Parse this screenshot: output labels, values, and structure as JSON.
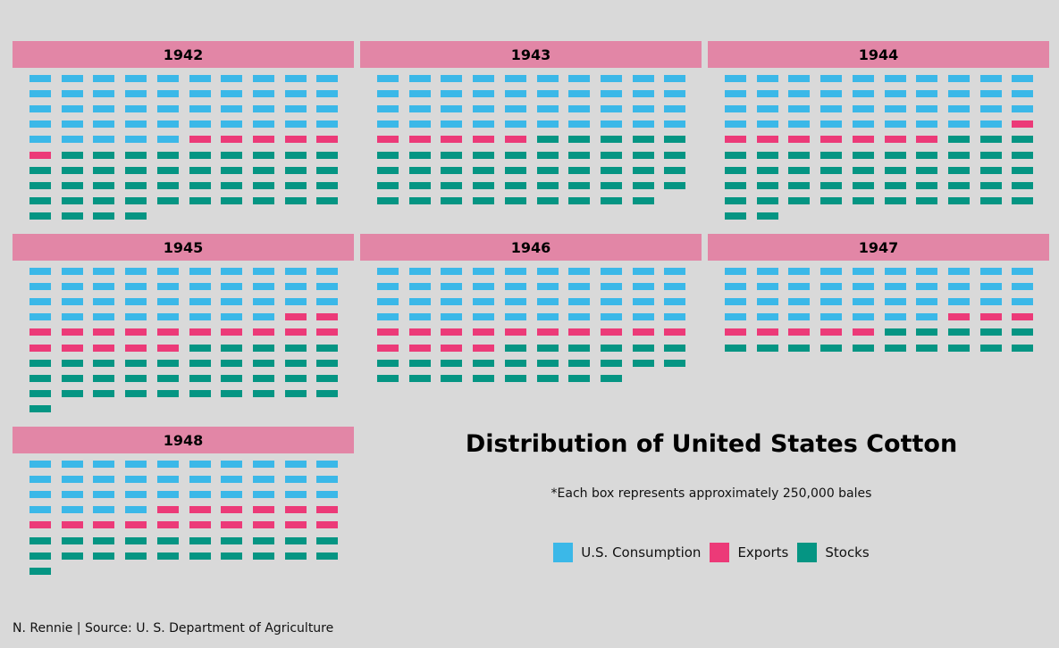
{
  "chart_data": {
    "type": "waffle",
    "title": "Distribution of United States Cotton",
    "subtitle": "*Each box represents approximately 250,000 bales",
    "caption": "N. Rennie | Source: U. S. Department of Agriculture",
    "columns": 10,
    "categories": [
      "U.S. Consumption",
      "Exports",
      "Stocks"
    ],
    "colors": {
      "U.S. Consumption": "#3bb8e8",
      "Exports": "#ec3a78",
      "Stocks": "#059583"
    },
    "panels": [
      {
        "year": "1942",
        "values": [
          45,
          6,
          43
        ]
      },
      {
        "year": "1943",
        "values": [
          40,
          5,
          44
        ]
      },
      {
        "year": "1944",
        "values": [
          39,
          8,
          45
        ]
      },
      {
        "year": "1945",
        "values": [
          38,
          17,
          36
        ]
      },
      {
        "year": "1946",
        "values": [
          40,
          14,
          24
        ]
      },
      {
        "year": "1947",
        "values": [
          37,
          8,
          15
        ]
      },
      {
        "year": "1948",
        "values": [
          34,
          16,
          21
        ]
      }
    ]
  }
}
